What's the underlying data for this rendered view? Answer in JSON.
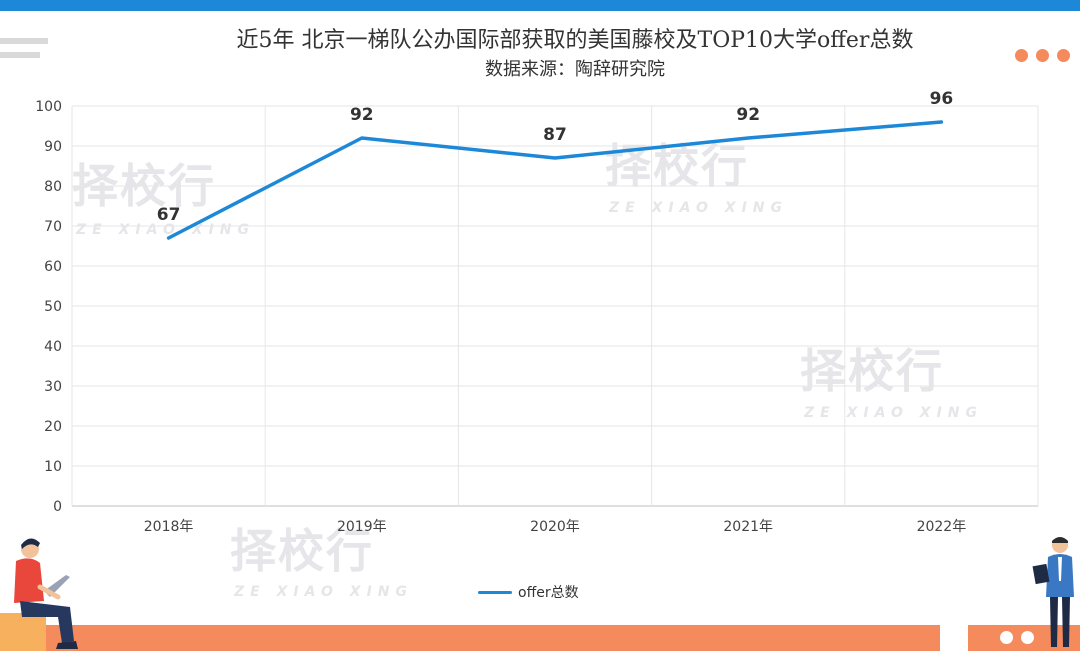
{
  "header": {
    "title": "近5年 北京一梯队公办国际部获取的美国藤校及TOP10大学offer总数",
    "subtitle": "数据来源：陶辞研究院"
  },
  "watermark": {
    "main": "择校行",
    "sub": "ZE XIAO XING"
  },
  "colors": {
    "accent": "#1e88d8",
    "brand": "#f58a5d",
    "grid": "#e6e6e6"
  },
  "chart_data": {
    "type": "line",
    "title": "近5年 北京一梯队公办国际部获取的美国藤校及TOP10大学offer总数",
    "subtitle": "数据来源：陶辞研究院",
    "categories": [
      "2018年",
      "2019年",
      "2020年",
      "2021年",
      "2022年"
    ],
    "series": [
      {
        "name": "offer总数",
        "values": [
          67,
          92,
          87,
          92,
          96
        ]
      }
    ],
    "ylim": [
      0,
      100
    ],
    "yticks": [
      0,
      10,
      20,
      30,
      40,
      50,
      60,
      70,
      80,
      90,
      100
    ],
    "grid": true,
    "data_labels": true,
    "legend_position": "bottom-center"
  },
  "legend": {
    "label": "offer总数"
  }
}
